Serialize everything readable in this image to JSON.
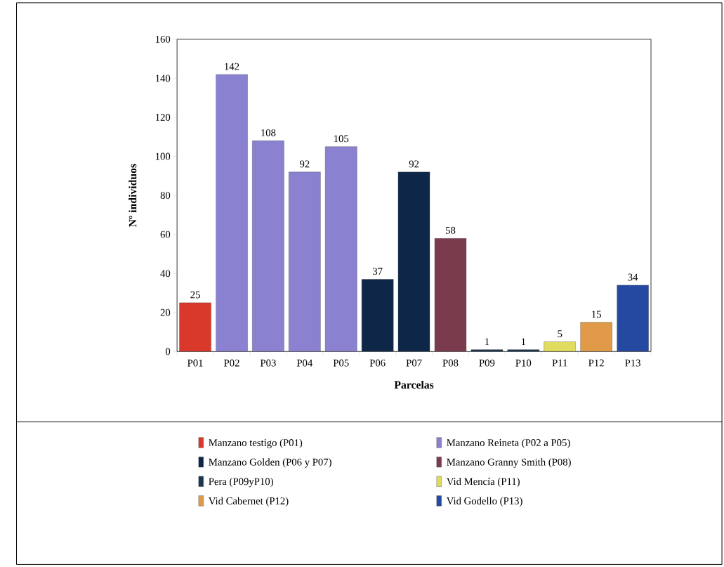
{
  "chart_data": {
    "type": "bar",
    "xlabel": "Parcelas",
    "ylabel": "Nº individuos",
    "categories": [
      "P01",
      "P02",
      "P03",
      "P04",
      "P05",
      "P06",
      "P07",
      "P08",
      "P09",
      "P10",
      "P11",
      "P12",
      "P13"
    ],
    "series": [
      {
        "name": "Manzano testigo (P01)",
        "color": "#d8392b",
        "values": [
          25,
          null,
          null,
          null,
          null,
          null,
          null,
          null,
          null,
          null,
          null,
          null,
          null
        ]
      },
      {
        "name": "Manzano Reineta (P02 a P05)",
        "color": "#8a82d0",
        "values": [
          null,
          142,
          108,
          92,
          105,
          null,
          null,
          null,
          null,
          null,
          null,
          null,
          null
        ]
      },
      {
        "name": "Manzano Golden (P06 y P07)",
        "color": "#0e2648",
        "values": [
          null,
          null,
          null,
          null,
          null,
          37,
          92,
          null,
          null,
          null,
          null,
          null,
          null
        ]
      },
      {
        "name": "Manzano Granny Smith (P08)",
        "color": "#7a3c4c",
        "values": [
          null,
          null,
          null,
          null,
          null,
          null,
          null,
          58,
          null,
          null,
          null,
          null,
          null
        ]
      },
      {
        "name": "Pera (P09yP10)",
        "color": "#1c3550",
        "values": [
          null,
          null,
          null,
          null,
          null,
          null,
          null,
          null,
          1,
          1,
          null,
          null,
          null
        ]
      },
      {
        "name": "Vid Mencía (P11)",
        "color": "#e0dc60",
        "values": [
          null,
          null,
          null,
          null,
          null,
          null,
          null,
          null,
          null,
          null,
          5,
          null,
          null
        ]
      },
      {
        "name": "Vid Cabernet (P12)",
        "color": "#e09a48",
        "values": [
          null,
          null,
          null,
          null,
          null,
          null,
          null,
          null,
          null,
          null,
          null,
          15,
          null
        ]
      },
      {
        "name": "Vid Godello (P13)",
        "color": "#2548a0",
        "values": [
          null,
          null,
          null,
          null,
          null,
          null,
          null,
          null,
          null,
          null,
          null,
          null,
          34
        ]
      }
    ],
    "ylim": [
      0,
      160
    ],
    "yticks": [
      0,
      20,
      40,
      60,
      80,
      100,
      120,
      140,
      160
    ],
    "data_labels": true,
    "legend": "bottom",
    "grid": false
  }
}
